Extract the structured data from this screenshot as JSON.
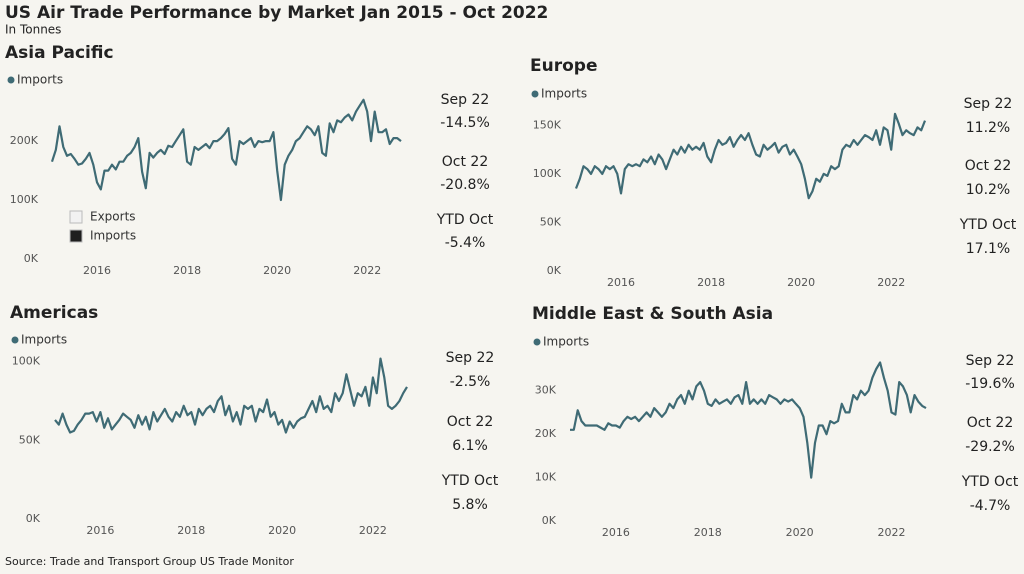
{
  "title": "US Air Trade Performance by Market Jan 2015 - Oct 2022",
  "subtitle": "In Tonnes",
  "source": "Source: Trade and Transport Group US Trade Monitor",
  "chart_data": [
    {
      "type": "line",
      "title": "Asia Pacific",
      "x": [
        "2015-01",
        "2015-02",
        "2015-03",
        "2015-04",
        "2015-05",
        "2015-06",
        "2015-07",
        "2015-08",
        "2015-09",
        "2015-10",
        "2015-11",
        "2015-12",
        "2016-01",
        "2016-02",
        "2016-03",
        "2016-04",
        "2016-05",
        "2016-06",
        "2016-07",
        "2016-08",
        "2016-09",
        "2016-10",
        "2016-11",
        "2016-12",
        "2017-01",
        "2017-02",
        "2017-03",
        "2017-04",
        "2017-05",
        "2017-06",
        "2017-07",
        "2017-08",
        "2017-09",
        "2017-10",
        "2017-11",
        "2017-12",
        "2018-01",
        "2018-02",
        "2018-03",
        "2018-04",
        "2018-05",
        "2018-06",
        "2018-07",
        "2018-08",
        "2018-09",
        "2018-10",
        "2018-11",
        "2018-12",
        "2019-01",
        "2019-02",
        "2019-03",
        "2019-04",
        "2019-05",
        "2019-06",
        "2019-07",
        "2019-08",
        "2019-09",
        "2019-10",
        "2019-11",
        "2019-12",
        "2020-01",
        "2020-02",
        "2020-03",
        "2020-04",
        "2020-05",
        "2020-06",
        "2020-07",
        "2020-08",
        "2020-09",
        "2020-10",
        "2020-11",
        "2020-12",
        "2021-01",
        "2021-02",
        "2021-03",
        "2021-04",
        "2021-05",
        "2021-06",
        "2021-07",
        "2021-08",
        "2021-09",
        "2021-10",
        "2021-11",
        "2021-12",
        "2022-01",
        "2022-02",
        "2022-03",
        "2022-04",
        "2022-05",
        "2022-06",
        "2022-07",
        "2022-08",
        "2022-09",
        "2022-10"
      ],
      "series": [
        {
          "name": "Imports",
          "color": "#3f6b75",
          "values": [
            165000,
            185000,
            225000,
            190000,
            175000,
            178000,
            170000,
            160000,
            162000,
            170000,
            180000,
            160000,
            130000,
            118000,
            150000,
            150000,
            160000,
            152000,
            165000,
            165000,
            175000,
            180000,
            190000,
            205000,
            148000,
            120000,
            180000,
            172000,
            180000,
            185000,
            178000,
            192000,
            190000,
            200000,
            210000,
            220000,
            165000,
            160000,
            190000,
            185000,
            190000,
            195000,
            188000,
            200000,
            200000,
            205000,
            212000,
            222000,
            170000,
            160000,
            200000,
            195000,
            200000,
            205000,
            190000,
            200000,
            198000,
            200000,
            200000,
            215000,
            150000,
            100000,
            160000,
            175000,
            185000,
            200000,
            205000,
            215000,
            225000,
            220000,
            210000,
            225000,
            180000,
            175000,
            230000,
            215000,
            235000,
            232000,
            240000,
            245000,
            235000,
            250000,
            260000,
            270000,
            250000,
            200000,
            250000,
            215000,
            215000,
            220000,
            195000,
            205000,
            205000,
            200000
          ]
        }
      ],
      "legend_box": [
        {
          "name": "Exports",
          "color": "#f2f2f2"
        },
        {
          "name": "Imports",
          "color": "#1f1f1f"
        }
      ],
      "xlim": [
        "2015-01",
        "2022-10"
      ],
      "xticks": [
        2016,
        2018,
        2020,
        2022
      ],
      "ylim": [
        0,
        290000
      ],
      "yticks": [
        {
          "value": 0,
          "label": "0K"
        },
        {
          "value": 100000,
          "label": "100K"
        },
        {
          "value": 200000,
          "label": "200K"
        }
      ],
      "stats": [
        {
          "label": "Sep 22",
          "change": "-14.5%"
        },
        {
          "label": "Oct 22",
          "change": "-20.8%"
        },
        {
          "label": "YTD Oct",
          "change": "-5.4%"
        }
      ]
    },
    {
      "type": "line",
      "title": "Europe",
      "x": [
        "2015-01",
        "2015-02",
        "2015-03",
        "2015-04",
        "2015-05",
        "2015-06",
        "2015-07",
        "2015-08",
        "2015-09",
        "2015-10",
        "2015-11",
        "2015-12",
        "2016-01",
        "2016-02",
        "2016-03",
        "2016-04",
        "2016-05",
        "2016-06",
        "2016-07",
        "2016-08",
        "2016-09",
        "2016-10",
        "2016-11",
        "2016-12",
        "2017-01",
        "2017-02",
        "2017-03",
        "2017-04",
        "2017-05",
        "2017-06",
        "2017-07",
        "2017-08",
        "2017-09",
        "2017-10",
        "2017-11",
        "2017-12",
        "2018-01",
        "2018-02",
        "2018-03",
        "2018-04",
        "2018-05",
        "2018-06",
        "2018-07",
        "2018-08",
        "2018-09",
        "2018-10",
        "2018-11",
        "2018-12",
        "2019-01",
        "2019-02",
        "2019-03",
        "2019-04",
        "2019-05",
        "2019-06",
        "2019-07",
        "2019-08",
        "2019-09",
        "2019-10",
        "2019-11",
        "2019-12",
        "2020-01",
        "2020-02",
        "2020-03",
        "2020-04",
        "2020-05",
        "2020-06",
        "2020-07",
        "2020-08",
        "2020-09",
        "2020-10",
        "2020-11",
        "2020-12",
        "2021-01",
        "2021-02",
        "2021-03",
        "2021-04",
        "2021-05",
        "2021-06",
        "2021-07",
        "2021-08",
        "2021-09",
        "2021-10",
        "2021-11",
        "2021-12",
        "2022-01",
        "2022-02",
        "2022-03",
        "2022-04",
        "2022-05",
        "2022-06",
        "2022-07",
        "2022-08",
        "2022-09",
        "2022-10"
      ],
      "series": [
        {
          "name": "Imports",
          "color": "#3f6b75",
          "values": [
            85000,
            95000,
            108000,
            105000,
            100000,
            108000,
            105000,
            100000,
            108000,
            105000,
            108000,
            100000,
            80000,
            105000,
            110000,
            108000,
            110000,
            108000,
            115000,
            112000,
            118000,
            110000,
            120000,
            115000,
            105000,
            115000,
            125000,
            120000,
            128000,
            122000,
            130000,
            125000,
            128000,
            125000,
            132000,
            118000,
            112000,
            125000,
            135000,
            130000,
            132000,
            138000,
            128000,
            135000,
            140000,
            135000,
            142000,
            130000,
            120000,
            118000,
            130000,
            125000,
            128000,
            132000,
            122000,
            128000,
            130000,
            120000,
            125000,
            118000,
            110000,
            95000,
            75000,
            82000,
            95000,
            92000,
            100000,
            98000,
            108000,
            105000,
            108000,
            125000,
            130000,
            128000,
            135000,
            130000,
            135000,
            140000,
            138000,
            135000,
            145000,
            130000,
            148000,
            145000,
            125000,
            162000,
            152000,
            140000,
            145000,
            142000,
            140000,
            148000,
            145000,
            155000
          ]
        }
      ],
      "xlim": [
        "2015-01",
        "2022-10"
      ],
      "xticks": [
        2016,
        2018,
        2020,
        2022
      ],
      "ylim": [
        0,
        170000
      ],
      "yticks": [
        {
          "value": 0,
          "label": "0K"
        },
        {
          "value": 50000,
          "label": "50K"
        },
        {
          "value": 100000,
          "label": "100K"
        },
        {
          "value": 150000,
          "label": "150K"
        }
      ],
      "stats": [
        {
          "label": "Sep 22",
          "change": "11.2%"
        },
        {
          "label": "Oct 22",
          "change": "10.2%"
        },
        {
          "label": "YTD Oct",
          "change": "17.1%"
        }
      ]
    },
    {
      "type": "line",
      "title": "Americas",
      "x": [
        "2015-01",
        "2015-02",
        "2015-03",
        "2015-04",
        "2015-05",
        "2015-06",
        "2015-07",
        "2015-08",
        "2015-09",
        "2015-10",
        "2015-11",
        "2015-12",
        "2016-01",
        "2016-02",
        "2016-03",
        "2016-04",
        "2016-05",
        "2016-06",
        "2016-07",
        "2016-08",
        "2016-09",
        "2016-10",
        "2016-11",
        "2016-12",
        "2017-01",
        "2017-02",
        "2017-03",
        "2017-04",
        "2017-05",
        "2017-06",
        "2017-07",
        "2017-08",
        "2017-09",
        "2017-10",
        "2017-11",
        "2017-12",
        "2018-01",
        "2018-02",
        "2018-03",
        "2018-04",
        "2018-05",
        "2018-06",
        "2018-07",
        "2018-08",
        "2018-09",
        "2018-10",
        "2018-11",
        "2018-12",
        "2019-01",
        "2019-02",
        "2019-03",
        "2019-04",
        "2019-05",
        "2019-06",
        "2019-07",
        "2019-08",
        "2019-09",
        "2019-10",
        "2019-11",
        "2019-12",
        "2020-01",
        "2020-02",
        "2020-03",
        "2020-04",
        "2020-05",
        "2020-06",
        "2020-07",
        "2020-08",
        "2020-09",
        "2020-10",
        "2020-11",
        "2020-12",
        "2021-01",
        "2021-02",
        "2021-03",
        "2021-04",
        "2021-05",
        "2021-06",
        "2021-07",
        "2021-08",
        "2021-09",
        "2021-10",
        "2021-11",
        "2021-12",
        "2022-01",
        "2022-02",
        "2022-03",
        "2022-04",
        "2022-05",
        "2022-06",
        "2022-07",
        "2022-08",
        "2022-09",
        "2022-10"
      ],
      "series": [
        {
          "name": "Imports",
          "color": "#3f6b75",
          "values": [
            63000,
            60000,
            67000,
            60000,
            55000,
            56000,
            60000,
            63000,
            67000,
            67000,
            68000,
            62000,
            68000,
            58000,
            64000,
            57000,
            60000,
            63000,
            67000,
            65000,
            63000,
            58000,
            66000,
            60000,
            65000,
            57000,
            68000,
            62000,
            66000,
            70000,
            65000,
            62000,
            68000,
            65000,
            72000,
            66000,
            68000,
            60000,
            70000,
            66000,
            70000,
            72000,
            68000,
            75000,
            78000,
            66000,
            72000,
            62000,
            68000,
            60000,
            72000,
            70000,
            72000,
            62000,
            70000,
            68000,
            76000,
            65000,
            68000,
            60000,
            63000,
            55000,
            62000,
            58000,
            62000,
            64000,
            65000,
            70000,
            75000,
            68000,
            78000,
            70000,
            72000,
            68000,
            80000,
            75000,
            80000,
            92000,
            82000,
            72000,
            80000,
            78000,
            84000,
            72000,
            90000,
            80000,
            102000,
            90000,
            72000,
            70000,
            72000,
            75000,
            80000,
            84000
          ]
        }
      ],
      "xlim": [
        "2015-01",
        "2022-10"
      ],
      "xticks": [
        2016,
        2018,
        2020,
        2022
      ],
      "ylim": [
        0,
        110000
      ],
      "yticks": [
        {
          "value": 0,
          "label": "0K"
        },
        {
          "value": 50000,
          "label": "50K"
        },
        {
          "value": 100000,
          "label": "100K"
        }
      ],
      "stats": [
        {
          "label": "Sep 22",
          "change": "-2.5%"
        },
        {
          "label": "Oct 22",
          "change": "6.1%"
        },
        {
          "label": "YTD Oct",
          "change": "5.8%"
        }
      ]
    },
    {
      "type": "line",
      "title": "Middle East & South Asia",
      "x": [
        "2015-01",
        "2015-02",
        "2015-03",
        "2015-04",
        "2015-05",
        "2015-06",
        "2015-07",
        "2015-08",
        "2015-09",
        "2015-10",
        "2015-11",
        "2015-12",
        "2016-01",
        "2016-02",
        "2016-03",
        "2016-04",
        "2016-05",
        "2016-06",
        "2016-07",
        "2016-08",
        "2016-09",
        "2016-10",
        "2016-11",
        "2016-12",
        "2017-01",
        "2017-02",
        "2017-03",
        "2017-04",
        "2017-05",
        "2017-06",
        "2017-07",
        "2017-08",
        "2017-09",
        "2017-10",
        "2017-11",
        "2017-12",
        "2018-01",
        "2018-02",
        "2018-03",
        "2018-04",
        "2018-05",
        "2018-06",
        "2018-07",
        "2018-08",
        "2018-09",
        "2018-10",
        "2018-11",
        "2018-12",
        "2019-01",
        "2019-02",
        "2019-03",
        "2019-04",
        "2019-05",
        "2019-06",
        "2019-07",
        "2019-08",
        "2019-09",
        "2019-10",
        "2019-11",
        "2019-12",
        "2020-01",
        "2020-02",
        "2020-03",
        "2020-04",
        "2020-05",
        "2020-06",
        "2020-07",
        "2020-08",
        "2020-09",
        "2020-10",
        "2020-11",
        "2020-12",
        "2021-01",
        "2021-02",
        "2021-03",
        "2021-04",
        "2021-05",
        "2021-06",
        "2021-07",
        "2021-08",
        "2021-09",
        "2021-10",
        "2021-11",
        "2021-12",
        "2022-01",
        "2022-02",
        "2022-03",
        "2022-04",
        "2022-05",
        "2022-06",
        "2022-07",
        "2022-08",
        "2022-09",
        "2022-10"
      ],
      "series": [
        {
          "name": "Imports",
          "color": "#3f6b75",
          "values": [
            21000,
            21000,
            25500,
            23000,
            22000,
            22000,
            22000,
            22000,
            21500,
            21000,
            22500,
            22000,
            22000,
            21500,
            23000,
            24000,
            23500,
            24000,
            23000,
            24000,
            25000,
            24000,
            26000,
            25000,
            24000,
            25000,
            27000,
            26000,
            28000,
            29000,
            27000,
            30000,
            28000,
            31000,
            32000,
            30000,
            27000,
            26500,
            28000,
            27000,
            27500,
            28000,
            27000,
            28500,
            29000,
            27000,
            32000,
            27000,
            28000,
            27000,
            28000,
            27000,
            29000,
            28500,
            28000,
            27000,
            28000,
            27500,
            28000,
            27000,
            26000,
            24000,
            18000,
            10000,
            18000,
            22000,
            22000,
            20000,
            23000,
            22500,
            23000,
            27000,
            25000,
            25000,
            29000,
            28000,
            30000,
            29000,
            30000,
            33000,
            35000,
            36500,
            33000,
            30000,
            25000,
            24500,
            32000,
            31000,
            29000,
            25000,
            29000,
            27500,
            26500,
            26000
          ]
        }
      ],
      "xlim": [
        "2015-01",
        "2022-10"
      ],
      "xticks": [
        2016,
        2018,
        2020,
        2022
      ],
      "ylim": [
        0,
        38000
      ],
      "yticks": [
        {
          "value": 0,
          "label": "0K"
        },
        {
          "value": 10000,
          "label": "10K"
        },
        {
          "value": 20000,
          "label": "20K"
        },
        {
          "value": 30000,
          "label": "30K"
        }
      ],
      "stats": [
        {
          "label": "Sep 22",
          "change": "-19.6%"
        },
        {
          "label": "Oct 22",
          "change": "-29.2%"
        },
        {
          "label": "YTD Oct",
          "change": "-4.7%"
        }
      ]
    }
  ]
}
